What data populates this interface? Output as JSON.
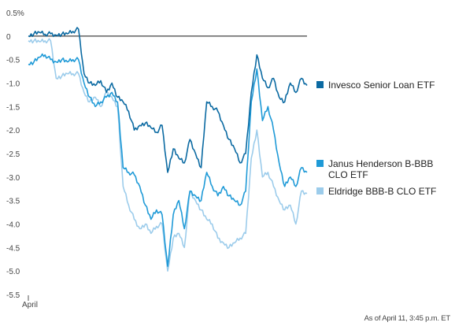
{
  "chart_data": {
    "type": "line",
    "title": "",
    "xlabel": "",
    "ylabel": "",
    "unit": "%",
    "ylim": [
      -5.5,
      0.5
    ],
    "y_ticks": [
      "0.5%",
      "0",
      "-0.5",
      "-1.0",
      "-1.5",
      "-2.0",
      "-2.5",
      "-3.0",
      "-3.5",
      "-4.0",
      "-4.5",
      "-5.0",
      "-5.5"
    ],
    "y_tick_values": [
      0.5,
      0,
      -0.5,
      -1.0,
      -1.5,
      -2.0,
      -2.5,
      -3.0,
      -3.5,
      -4.0,
      -4.5,
      -5.0,
      -5.5
    ],
    "x_ticks": [
      "April"
    ],
    "zero_line": true,
    "legend_position": "right",
    "series": [
      {
        "name": "Invesco Senior Loan ETF",
        "color": "#0b6aa2",
        "x": [
          0,
          1,
          2,
          3,
          4,
          5,
          6,
          7,
          8,
          9,
          10,
          11,
          12,
          13,
          14,
          15,
          16,
          17,
          18,
          19,
          20,
          21,
          22,
          23,
          24,
          25,
          26,
          27,
          28,
          29,
          30,
          31,
          32,
          33,
          34,
          35,
          36,
          37,
          38,
          39,
          40,
          41,
          42,
          43,
          44,
          45,
          46,
          47,
          48,
          49,
          50
        ],
        "values": [
          0.0,
          0.05,
          0.08,
          0.04,
          0.05,
          0.02,
          0.04,
          0.05,
          0.1,
          0.15,
          -0.8,
          -1.0,
          -1.05,
          -0.95,
          -1.2,
          -1.0,
          -1.3,
          -1.4,
          -1.6,
          -2.0,
          -1.9,
          -1.85,
          -1.95,
          -2.05,
          -1.9,
          -2.9,
          -2.4,
          -2.6,
          -2.7,
          -2.2,
          -2.5,
          -2.8,
          -1.4,
          -1.5,
          -1.6,
          -1.9,
          -2.2,
          -2.4,
          -2.7,
          -2.5,
          -1.2,
          -0.4,
          -0.9,
          -1.1,
          -0.9,
          -1.3,
          -1.4,
          -1.0,
          -1.2,
          -0.9,
          -1.05
        ]
      },
      {
        "name": "Janus Henderson B-BBB CLO ETF",
        "color": "#1f9ad7",
        "x": [
          0,
          1,
          2,
          3,
          4,
          5,
          6,
          7,
          8,
          9,
          10,
          11,
          12,
          13,
          14,
          15,
          16,
          17,
          18,
          19,
          20,
          21,
          22,
          23,
          24,
          25,
          26,
          27,
          28,
          29,
          30,
          31,
          32,
          33,
          34,
          35,
          36,
          37,
          38,
          39,
          40,
          41,
          42,
          43,
          44,
          45,
          46,
          47,
          48,
          49,
          50
        ],
        "values": [
          -0.6,
          -0.55,
          -0.45,
          -0.4,
          -0.5,
          -0.55,
          -0.5,
          -0.55,
          -0.5,
          -0.5,
          -1.0,
          -1.3,
          -1.5,
          -1.4,
          -1.3,
          -1.2,
          -1.4,
          -2.8,
          -2.9,
          -2.95,
          -3.2,
          -3.6,
          -3.9,
          -3.7,
          -3.8,
          -4.9,
          -3.8,
          -3.5,
          -4.1,
          -3.3,
          -3.4,
          -3.5,
          -2.9,
          -3.2,
          -3.4,
          -3.2,
          -3.4,
          -3.5,
          -3.6,
          -3.3,
          -1.4,
          -0.7,
          -1.8,
          -1.5,
          -2.0,
          -2.7,
          -3.2,
          -3.0,
          -3.2,
          -2.8,
          -2.9
        ]
      },
      {
        "name": "Eldridge BBB-B CLO ETF",
        "color": "#9ccceb",
        "x": [
          0,
          1,
          2,
          3,
          4,
          5,
          6,
          7,
          8,
          9,
          10,
          11,
          12,
          13,
          14,
          15,
          16,
          17,
          18,
          19,
          20,
          21,
          22,
          23,
          24,
          25,
          26,
          27,
          28,
          29,
          30,
          31,
          32,
          33,
          34,
          35,
          36,
          37,
          38,
          39,
          40,
          41,
          42,
          43,
          44,
          45,
          46,
          47,
          48,
          49,
          50
        ],
        "values": [
          -0.1,
          -0.1,
          -0.12,
          -0.1,
          -0.1,
          -0.9,
          -0.85,
          -0.8,
          -0.8,
          -0.8,
          -1.2,
          -1.4,
          -1.3,
          -1.5,
          -1.2,
          -1.3,
          -1.5,
          -3.2,
          -3.6,
          -3.9,
          -4.1,
          -4.0,
          -4.2,
          -4.05,
          -4.0,
          -5.0,
          -4.3,
          -4.2,
          -4.5,
          -3.3,
          -3.5,
          -3.7,
          -3.9,
          -4.0,
          -4.3,
          -4.4,
          -4.5,
          -4.4,
          -4.3,
          -4.2,
          -2.6,
          -2.0,
          -3.0,
          -2.9,
          -3.2,
          -3.5,
          -3.7,
          -3.6,
          -4.0,
          -3.3,
          -3.35
        ]
      }
    ]
  },
  "footnote": "As of April 11, 3:45 p.m. ET"
}
